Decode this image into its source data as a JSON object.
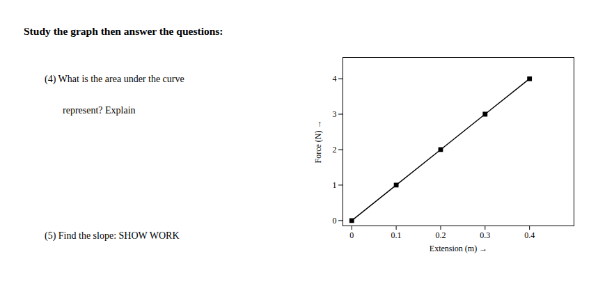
{
  "chart_data": {
    "type": "line",
    "title": "Study the graph then answer the questions:",
    "annotations": [
      "(4) What is the area under the curve",
      "represent? Explain",
      "(5) Find the slope: SHOW WORK"
    ],
    "x": [
      0.0,
      0.1,
      0.2,
      0.3,
      0.4
    ],
    "values": [
      0.0,
      1.0,
      2.0,
      3.0,
      4.0
    ],
    "xlabel": "Extension (m)",
    "ylabel": "Force (N)",
    "xlim": [
      -0.02,
      0.5
    ],
    "ylim": [
      -0.15,
      4.6
    ],
    "xticks": [
      0,
      0.1,
      0.2,
      0.3,
      0.4
    ],
    "yticks": [
      0,
      1,
      2,
      3,
      4
    ],
    "color": "#000000",
    "marker": "square",
    "grid": false
  }
}
